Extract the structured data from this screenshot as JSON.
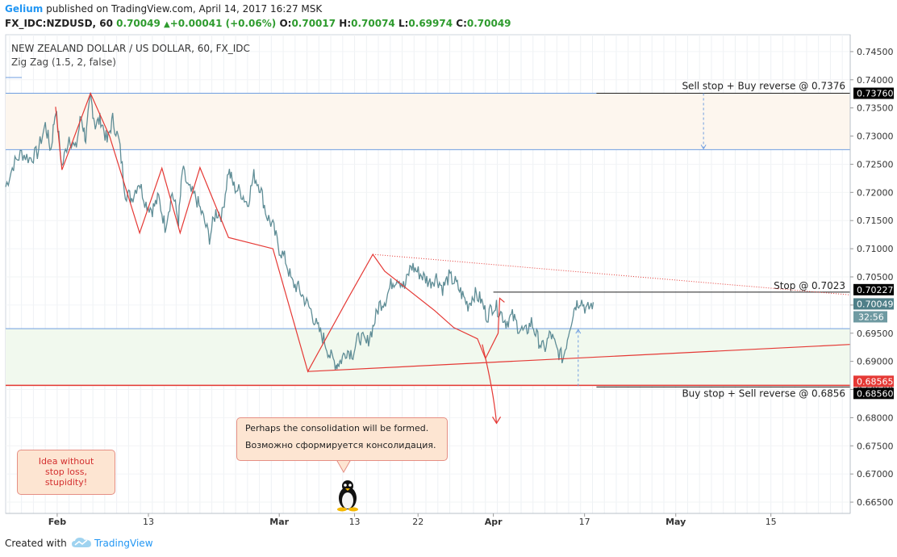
{
  "header": {
    "brand": "Gelium",
    "published": "published on TradingView.com, April 14, 2017 16:27 MSK",
    "symbol": "FX_IDC:NZDUSD, 60",
    "last": "0.70049",
    "change": "+0.00041 (+0.06%)",
    "o_label": "O:",
    "o_value": "0.70017",
    "h_label": "H:",
    "h_value": "0.70074",
    "l_label": "L:",
    "l_value": "0.69974",
    "c_label": "C:",
    "c_value": "0.70049",
    "up_arrow": "▲"
  },
  "legend": {
    "title": "NEW ZEALAND DOLLAR / US DOLLAR, 60, FX_IDC",
    "indicator": "Zig Zag (1.5, 2, false)"
  },
  "notes": {
    "consolidation_en": "Perhaps the consolidation will be formed.",
    "consolidation_ru": "Возможно сформируется консолидация.",
    "idea_line1": "Idea without",
    "idea_line2": "stop loss,",
    "idea_line3": "stupidity!"
  },
  "footer": {
    "created_with": "Created with",
    "tradingview": "TradingView",
    "logo_icon": "tradingview-cloud-icon"
  },
  "colors": {
    "price": "#5f8d96",
    "zigzag": "#e53935",
    "hline_blue": "#6f9ee0",
    "hline_black": "#222222",
    "support_red": "#e53935",
    "zone_top": "#fdf6ee",
    "zone_bottom": "#f1f9ee",
    "note_bg": "#fde5d2",
    "note_border": "#e58f84"
  },
  "chart_data": {
    "type": "line",
    "series_name": "NZDUSD 60",
    "y_range": [
      0.663,
      0.748
    ],
    "y_ticks": [
      "0.74500",
      "0.74000",
      "0.73500",
      "0.73000",
      "0.72500",
      "0.72000",
      "0.71500",
      "0.71000",
      "0.70500",
      "0.70000",
      "0.69500",
      "0.69000",
      "0.68500",
      "0.68000",
      "0.67500",
      "0.67000",
      "0.66500"
    ],
    "x_ticks": [
      {
        "label": "Feb",
        "bold": true,
        "t": 14
      },
      {
        "label": "13",
        "bold": false,
        "t": 25.5
      },
      {
        "label": "Mar",
        "bold": true,
        "t": 42
      },
      {
        "label": "13",
        "bold": false,
        "t": 51.5
      },
      {
        "label": "22",
        "bold": false,
        "t": 59.5
      },
      {
        "label": "Apr",
        "bold": true,
        "t": 69
      },
      {
        "label": "17",
        "bold": false,
        "t": 80.5
      },
      {
        "label": "May",
        "bold": true,
        "t": 92
      },
      {
        "label": "15",
        "bold": false,
        "t": 104
      }
    ],
    "x_range": [
      7.5,
      114
    ],
    "price_path": [
      [
        7.5,
        0.721
      ],
      [
        8.5,
        0.725
      ],
      [
        9.5,
        0.727
      ],
      [
        10.5,
        0.726
      ],
      [
        11.5,
        0.727
      ],
      [
        12.5,
        0.732
      ],
      [
        13.2,
        0.7275
      ],
      [
        13.8,
        0.735
      ],
      [
        14.6,
        0.7245
      ],
      [
        15.5,
        0.73
      ],
      [
        16.3,
        0.7275
      ],
      [
        17.0,
        0.7335
      ],
      [
        17.6,
        0.7295
      ],
      [
        18.2,
        0.737
      ],
      [
        18.8,
        0.732
      ],
      [
        19.5,
        0.733
      ],
      [
        20.3,
        0.729
      ],
      [
        21,
        0.733
      ],
      [
        21.8,
        0.729
      ],
      [
        22.6,
        0.72
      ],
      [
        23.4,
        0.719
      ],
      [
        24.3,
        0.722
      ],
      [
        25.2,
        0.718
      ],
      [
        26,
        0.717
      ],
      [
        26.8,
        0.719
      ],
      [
        27.6,
        0.714
      ],
      [
        28.5,
        0.72
      ],
      [
        29.3,
        0.715
      ],
      [
        29.8,
        0.724
      ],
      [
        30.6,
        0.7205
      ],
      [
        31.5,
        0.719
      ],
      [
        32.3,
        0.716
      ],
      [
        33.2,
        0.712
      ],
      [
        34,
        0.7165
      ],
      [
        34.8,
        0.716
      ],
      [
        35.6,
        0.724
      ],
      [
        36.3,
        0.721
      ],
      [
        37.2,
        0.72
      ],
      [
        38,
        0.718
      ],
      [
        38.8,
        0.723
      ],
      [
        39.6,
        0.721
      ],
      [
        40.4,
        0.716
      ],
      [
        41.2,
        0.714
      ],
      [
        42,
        0.71
      ],
      [
        42.8,
        0.708
      ],
      [
        43.6,
        0.704
      ],
      [
        44.4,
        0.703
      ],
      [
        45.2,
        0.701
      ],
      [
        46,
        0.699
      ],
      [
        46.8,
        0.696
      ],
      [
        47.6,
        0.694
      ],
      [
        48.4,
        0.691
      ],
      [
        49.2,
        0.6895
      ],
      [
        49.7,
        0.69
      ],
      [
        50.5,
        0.692
      ],
      [
        51.3,
        0.6915
      ],
      [
        52.1,
        0.6945
      ],
      [
        53,
        0.693
      ],
      [
        53.8,
        0.696
      ],
      [
        54.6,
        0.7
      ],
      [
        55.4,
        0.701
      ],
      [
        56.2,
        0.704
      ],
      [
        57,
        0.705
      ],
      [
        57.8,
        0.703
      ],
      [
        58.6,
        0.707
      ],
      [
        59.4,
        0.706
      ],
      [
        60.2,
        0.705
      ],
      [
        61,
        0.704
      ],
      [
        61.8,
        0.705
      ],
      [
        62.6,
        0.703
      ],
      [
        63.4,
        0.705
      ],
      [
        64.2,
        0.704
      ],
      [
        65,
        0.702
      ],
      [
        65.8,
        0.7
      ],
      [
        66.6,
        0.702
      ],
      [
        67.4,
        0.701
      ],
      [
        68.2,
        0.698
      ],
      [
        69,
        0.7
      ],
      [
        69.8,
        0.699
      ],
      [
        70.6,
        0.697
      ],
      [
        71.4,
        0.698
      ],
      [
        72.2,
        0.696
      ],
      [
        73,
        0.695
      ],
      [
        73.8,
        0.697
      ],
      [
        74.6,
        0.694
      ],
      [
        75.4,
        0.692
      ],
      [
        76.2,
        0.695
      ],
      [
        77,
        0.692
      ],
      [
        77.8,
        0.6905
      ],
      [
        78.6,
        0.696
      ],
      [
        79.3,
        0.7
      ],
      [
        80,
        0.701
      ],
      [
        80.8,
        0.699
      ],
      [
        81.6,
        0.7005
      ]
    ],
    "zigzag": [
      [
        13.8,
        0.7352
      ],
      [
        14.6,
        0.724
      ],
      [
        18.2,
        0.7376
      ],
      [
        20.6,
        0.73
      ],
      [
        24.4,
        0.7128
      ],
      [
        27.2,
        0.7243
      ],
      [
        29.5,
        0.7128
      ],
      [
        32.0,
        0.7244
      ],
      [
        35.6,
        0.712
      ],
      [
        41.2,
        0.71
      ],
      [
        45.6,
        0.6882
      ],
      [
        50.6,
        0.701
      ],
      [
        53.8,
        0.709
      ],
      [
        55.3,
        0.706
      ],
      [
        61.6,
        0.699
      ],
      [
        64.0,
        0.696
      ],
      [
        67.0,
        0.694
      ],
      [
        68.0,
        0.6905
      ],
      [
        69.6,
        0.695
      ],
      [
        69.8,
        0.7012
      ],
      [
        70.4,
        0.7005
      ]
    ],
    "levels": {
      "sell_stop": 0.7376,
      "sell_stop_label": "Sell stop + Buy reverse @ 0.7376",
      "sell_stop_tag": "0.73760",
      "stop": 0.7023,
      "stop_label": "Stop @ 0.7023",
      "stop_tag": "0.70227",
      "buy_stop": 0.6856,
      "buy_stop_label": "Buy stop + Sell reverse @ 0.6856",
      "buy_stop_tag": "0.68560",
      "red_tag": "0.68565",
      "last_tag": "0.70049",
      "countdown_tag": "32:56",
      "blue_upper": 0.7276,
      "blue_lower": 0.6958
    }
  }
}
